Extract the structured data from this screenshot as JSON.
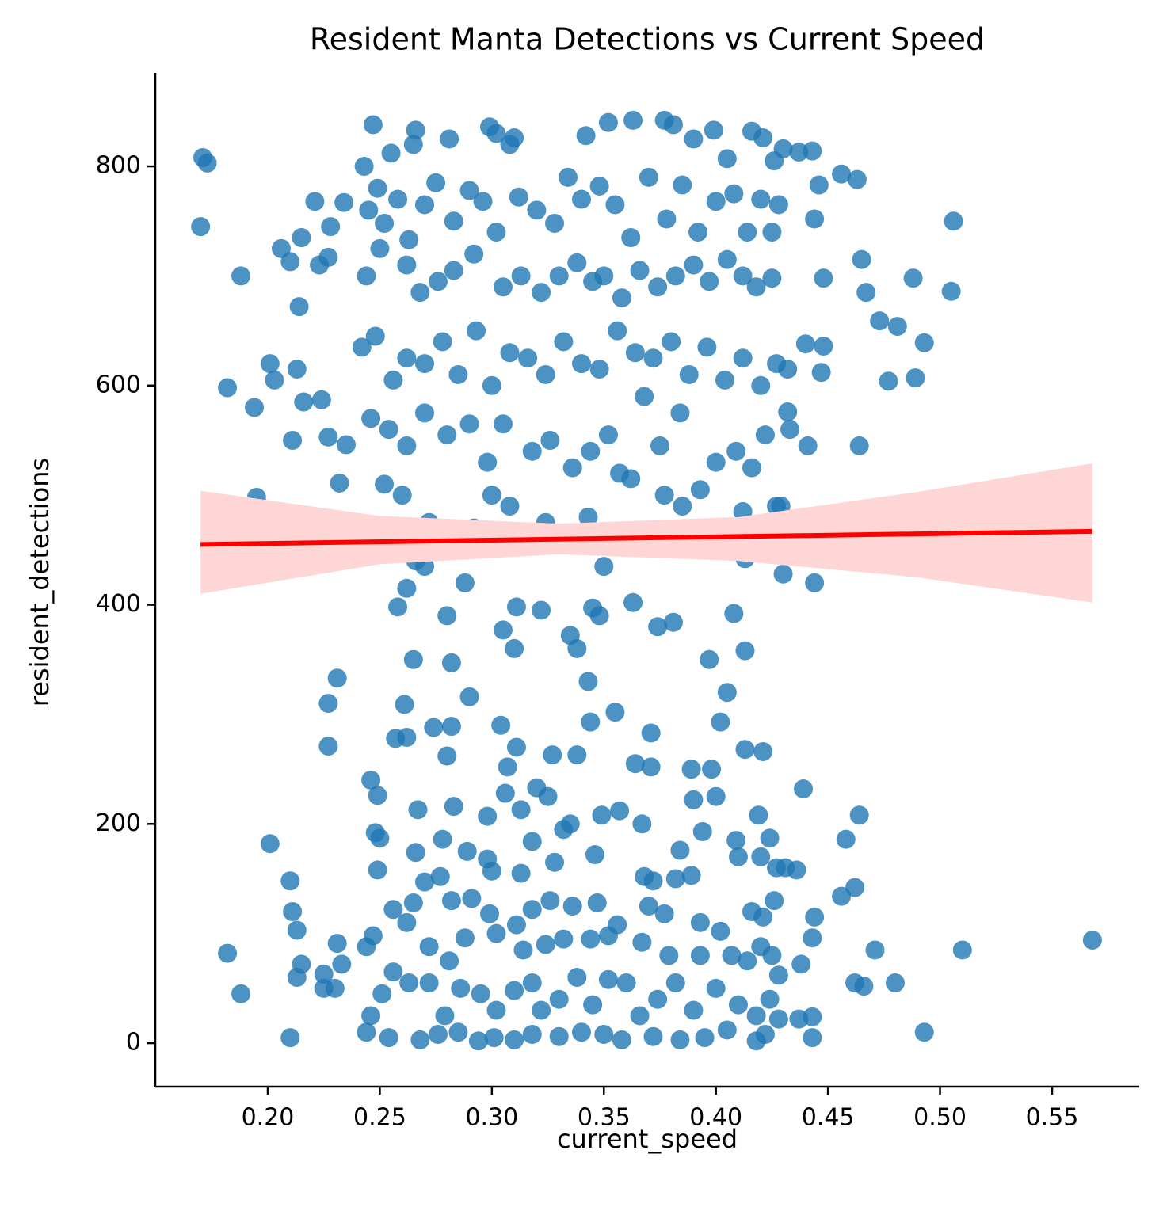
{
  "chart_data": {
    "type": "scatter",
    "title": "Resident Manta Detections vs Current Speed",
    "x_label": "current_speed",
    "y_label": "resident_detections",
    "color": "#1f77b4",
    "x": [
      0.171,
      0.173,
      0.17,
      0.182,
      0.188,
      0.194,
      0.195,
      0.201,
      0.203,
      0.206,
      0.21,
      0.211,
      0.213,
      0.214,
      0.215,
      0.216,
      0.22,
      0.221,
      0.223,
      0.224,
      0.227,
      0.227,
      0.228,
      0.231,
      0.227,
      0.227,
      0.232,
      0.234,
      0.235,
      0.201,
      0.21,
      0.211,
      0.213,
      0.215,
      0.213,
      0.225,
      0.225,
      0.23,
      0.231,
      0.233,
      0.21,
      0.182,
      0.188,
      0.568,
      0.51,
      0.505,
      0.506,
      0.493,
      0.493,
      0.489,
      0.488,
      0.48,
      0.481,
      0.477,
      0.473,
      0.471,
      0.467,
      0.466,
      0.465,
      0.464,
      0.464,
      0.463,
      0.462,
      0.462,
      0.458,
      0.456,
      0.456,
      0.448,
      0.448,
      0.447,
      0.446,
      0.444,
      0.444,
      0.444,
      0.443,
      0.443,
      0.443,
      0.443,
      0.441,
      0.44,
      0.439,
      0.438,
      0.437,
      0.436,
      0.433,
      0.432,
      0.43,
      0.429,
      0.428,
      0.247,
      0.243,
      0.249,
      0.255,
      0.266,
      0.265,
      0.281,
      0.299,
      0.302,
      0.31,
      0.308,
      0.342,
      0.352,
      0.363,
      0.377,
      0.381,
      0.39,
      0.399,
      0.405,
      0.416,
      0.421,
      0.426,
      0.43,
      0.245,
      0.252,
      0.258,
      0.263,
      0.27,
      0.275,
      0.283,
      0.29,
      0.296,
      0.302,
      0.312,
      0.32,
      0.328,
      0.334,
      0.34,
      0.348,
      0.355,
      0.362,
      0.37,
      0.378,
      0.385,
      0.392,
      0.4,
      0.408,
      0.414,
      0.42,
      0.425,
      0.244,
      0.25,
      0.262,
      0.268,
      0.276,
      0.283,
      0.292,
      0.305,
      0.313,
      0.322,
      0.33,
      0.338,
      0.345,
      0.35,
      0.358,
      0.366,
      0.374,
      0.382,
      0.39,
      0.397,
      0.405,
      0.412,
      0.418,
      0.425,
      0.242,
      0.248,
      0.256,
      0.262,
      0.27,
      0.278,
      0.285,
      0.293,
      0.3,
      0.308,
      0.316,
      0.324,
      0.332,
      0.34,
      0.348,
      0.356,
      0.364,
      0.372,
      0.38,
      0.388,
      0.396,
      0.404,
      0.412,
      0.42,
      0.427,
      0.432,
      0.246,
      0.254,
      0.262,
      0.27,
      0.28,
      0.29,
      0.298,
      0.305,
      0.318,
      0.326,
      0.336,
      0.344,
      0.352,
      0.362,
      0.368,
      0.375,
      0.384,
      0.393,
      0.4,
      0.409,
      0.416,
      0.422,
      0.252,
      0.26,
      0.272,
      0.28,
      0.288,
      0.292,
      0.3,
      0.308,
      0.316,
      0.324,
      0.334,
      0.343,
      0.35,
      0.357,
      0.369,
      0.377,
      0.385,
      0.401,
      0.412,
      0.413,
      0.421,
      0.427,
      0.266,
      0.27,
      0.25,
      0.258,
      0.262,
      0.28,
      0.305,
      0.311,
      0.31,
      0.322,
      0.335,
      0.345,
      0.348,
      0.363,
      0.374,
      0.381,
      0.408,
      0.397,
      0.413,
      0.338,
      0.343,
      0.265,
      0.282,
      0.29,
      0.261,
      0.274,
      0.282,
      0.304,
      0.344,
      0.355,
      0.371,
      0.402,
      0.405,
      0.257,
      0.262,
      0.28,
      0.311,
      0.327,
      0.338,
      0.364,
      0.371,
      0.389,
      0.398,
      0.413,
      0.421,
      0.246,
      0.249,
      0.267,
      0.283,
      0.298,
      0.306,
      0.307,
      0.313,
      0.32,
      0.325,
      0.335,
      0.349,
      0.357,
      0.367,
      0.39,
      0.4,
      0.394,
      0.409,
      0.419,
      0.424,
      0.248,
      0.25,
      0.249,
      0.266,
      0.278,
      0.289,
      0.298,
      0.3,
      0.313,
      0.318,
      0.328,
      0.332,
      0.346,
      0.368,
      0.372,
      0.382,
      0.384,
      0.389,
      0.41,
      0.42,
      0.427,
      0.431,
      0.256,
      0.265,
      0.27,
      0.277,
      0.282,
      0.291,
      0.299,
      0.311,
      0.318,
      0.326,
      0.336,
      0.347,
      0.356,
      0.37,
      0.377,
      0.393,
      0.402,
      0.416,
      0.421,
      0.426,
      0.244,
      0.247,
      0.262,
      0.272,
      0.281,
      0.288,
      0.302,
      0.314,
      0.324,
      0.332,
      0.344,
      0.352,
      0.367,
      0.379,
      0.393,
      0.407,
      0.414,
      0.42,
      0.425,
      0.428,
      0.246,
      0.251,
      0.256,
      0.263,
      0.272,
      0.279,
      0.286,
      0.295,
      0.302,
      0.31,
      0.318,
      0.322,
      0.33,
      0.338,
      0.345,
      0.352,
      0.36,
      0.366,
      0.374,
      0.382,
      0.39,
      0.4,
      0.41,
      0.418,
      0.424,
      0.428,
      0.437,
      0.244,
      0.254,
      0.268,
      0.276,
      0.285,
      0.294,
      0.301,
      0.31,
      0.318,
      0.33,
      0.34,
      0.35,
      0.358,
      0.372,
      0.384,
      0.395,
      0.405,
      0.418,
      0.422
    ],
    "values": [
      808,
      803,
      745,
      598,
      700,
      580,
      498,
      620,
      605,
      725,
      713,
      550,
      615,
      672,
      735,
      585,
      442,
      768,
      710,
      587,
      717,
      553,
      745,
      333,
      310,
      271,
      511,
      767,
      546,
      182,
      148,
      120,
      103,
      72,
      60,
      63,
      50,
      50,
      91,
      72,
      5,
      82,
      45,
      94,
      85,
      686,
      750,
      10,
      639,
      607,
      698,
      55,
      654,
      604,
      659,
      85,
      685,
      52,
      715,
      545,
      208,
      788,
      55,
      142,
      186,
      793,
      134,
      698,
      636,
      612,
      783,
      420,
      752,
      115,
      814,
      96,
      24,
      5,
      545,
      638,
      232,
      72,
      813,
      158,
      560,
      576,
      428,
      490,
      765,
      838,
      800,
      780,
      812,
      833,
      820,
      825,
      836,
      830,
      826,
      820,
      828,
      840,
      842,
      842,
      838,
      825,
      833,
      807,
      832,
      826,
      805,
      816,
      760,
      748,
      770,
      733,
      765,
      785,
      750,
      778,
      768,
      740,
      772,
      760,
      748,
      790,
      770,
      782,
      765,
      735,
      790,
      752,
      783,
      740,
      768,
      775,
      740,
      770,
      740,
      700,
      725,
      710,
      685,
      695,
      705,
      720,
      690,
      700,
      685,
      700,
      712,
      695,
      700,
      680,
      705,
      690,
      700,
      710,
      695,
      715,
      700,
      690,
      698,
      635,
      645,
      605,
      625,
      620,
      640,
      610,
      650,
      600,
      630,
      625,
      610,
      640,
      620,
      615,
      650,
      630,
      625,
      640,
      610,
      635,
      605,
      625,
      600,
      620,
      615,
      570,
      560,
      545,
      575,
      555,
      565,
      530,
      565,
      540,
      550,
      525,
      540,
      555,
      515,
      590,
      545,
      575,
      505,
      530,
      540,
      525,
      555,
      510,
      500,
      475,
      455,
      420,
      470,
      500,
      490,
      460,
      475,
      465,
      480,
      435,
      520,
      468,
      500,
      490,
      455,
      485,
      442,
      470,
      490,
      440,
      435,
      470,
      398,
      415,
      390,
      377,
      398,
      360,
      395,
      372,
      397,
      390,
      402,
      380,
      384,
      392,
      350,
      358,
      360,
      330,
      350,
      347,
      316,
      309,
      288,
      289,
      290,
      293,
      302,
      283,
      293,
      320,
      278,
      279,
      262,
      270,
      263,
      263,
      255,
      252,
      250,
      250,
      268,
      266,
      240,
      226,
      213,
      216,
      207,
      228,
      252,
      213,
      233,
      225,
      200,
      208,
      212,
      200,
      222,
      225,
      193,
      185,
      208,
      187,
      192,
      187,
      158,
      174,
      186,
      175,
      168,
      157,
      155,
      184,
      165,
      195,
      172,
      152,
      148,
      150,
      176,
      153,
      170,
      170,
      160,
      160,
      122,
      128,
      147,
      152,
      130,
      132,
      118,
      108,
      122,
      130,
      125,
      128,
      108,
      125,
      118,
      110,
      102,
      120,
      115,
      130,
      88,
      98,
      110,
      88,
      75,
      96,
      100,
      85,
      90,
      95,
      95,
      98,
      92,
      80,
      80,
      80,
      75,
      88,
      80,
      62,
      25,
      45,
      65,
      55,
      55,
      25,
      50,
      45,
      30,
      48,
      55,
      30,
      40,
      60,
      35,
      58,
      55,
      25,
      40,
      55,
      30,
      50,
      35,
      25,
      40,
      22,
      22,
      10,
      5,
      3,
      8,
      10,
      2,
      5,
      3,
      8,
      6,
      10,
      8,
      3,
      6,
      3,
      5,
      12,
      2,
      8
    ],
    "regression": {
      "color": "#ff0000",
      "x": [
        0.17,
        0.568
      ],
      "values": [
        455,
        467
      ],
      "ci_x": [
        0.17,
        0.25,
        0.33,
        0.41,
        0.49,
        0.568
      ],
      "ci_lower": [
        410,
        437,
        446,
        440,
        425,
        402
      ],
      "ci_upper": [
        504,
        481,
        474,
        480,
        503,
        529
      ],
      "ci_color": "#ffd6d6"
    },
    "xlim": [
      0.1498,
      0.5889
    ],
    "ylim": [
      -39.7,
      885.3
    ],
    "xticks": [
      {
        "value": 0.2,
        "label": "0.20"
      },
      0.25,
      {
        "value": 0.3,
        "label": "0.30"
      },
      0.35,
      {
        "value": 0.4,
        "label": "0.40"
      },
      0.45,
      {
        "value": 0.5,
        "label": "0.50"
      },
      0.55
    ],
    "yticks": [
      0,
      200,
      400,
      600,
      800
    ],
    "grid": false
  }
}
